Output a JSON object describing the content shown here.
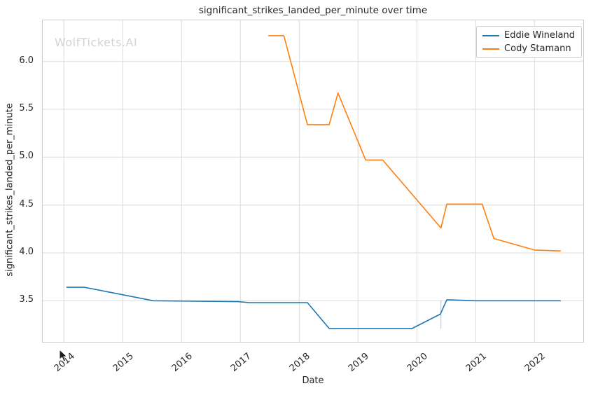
{
  "title": "significant_strikes_landed_per_minute over time",
  "watermark": "WolfTickets.AI",
  "colors": {
    "background": "#ffffff",
    "grid": "#dcdcdc",
    "axis_border": "#cccccc",
    "text": "#262626",
    "watermark": "#d3d3d3",
    "eddie_wineland_line": "#1f77b4",
    "cody_stamann_line": "#ff7f0e",
    "annotation_light_blue": "#aec7e8"
  },
  "legend": {
    "items": [
      "Eddie Wineland",
      "Cody Stamann"
    ]
  },
  "chart_data": {
    "type": "line",
    "title": "significant_strikes_landed_per_minute over time",
    "xlabel": "Date",
    "ylabel": "significant_strikes_landed_per_minute",
    "grid": true,
    "legend_position": "upper right",
    "x_ticks": [
      2014,
      2015,
      2016,
      2017,
      2018,
      2019,
      2020,
      2021,
      2022
    ],
    "y_ticks": [
      3.5,
      4.0,
      4.5,
      5.0,
      5.5,
      6.0
    ],
    "xlim": [
      2013.64,
      2022.83
    ],
    "ylim": [
      3.07,
      6.43
    ],
    "series": [
      {
        "name": "Eddie Wineland",
        "color": "#1f77b4",
        "points": [
          [
            2014.05,
            3.64
          ],
          [
            2014.35,
            3.64
          ],
          [
            2015.52,
            3.5
          ],
          [
            2016.96,
            3.49
          ],
          [
            2017.15,
            3.48
          ],
          [
            2018.14,
            3.48
          ],
          [
            2018.51,
            3.21
          ],
          [
            2019.92,
            3.21
          ],
          [
            2020.4,
            3.36
          ],
          [
            2020.51,
            3.51
          ],
          [
            2021.0,
            3.5
          ],
          [
            2022.44,
            3.5
          ]
        ]
      },
      {
        "name": "Cody Stamann",
        "color": "#ff7f0e",
        "points": [
          [
            2017.48,
            6.27
          ],
          [
            2017.74,
            6.27
          ],
          [
            2018.14,
            5.34
          ],
          [
            2018.51,
            5.34
          ],
          [
            2018.66,
            5.67
          ],
          [
            2019.13,
            4.97
          ],
          [
            2019.42,
            4.97
          ],
          [
            2020.41,
            4.26
          ],
          [
            2020.51,
            4.51
          ],
          [
            2021.11,
            4.51
          ],
          [
            2021.31,
            4.15
          ],
          [
            2022.0,
            4.03
          ],
          [
            2022.44,
            4.02
          ]
        ]
      }
    ],
    "annotations": [
      {
        "type": "vline-segment",
        "x": 2020.41,
        "y_from": 3.21,
        "y_to": 3.5,
        "color": "#aec7e8"
      }
    ]
  }
}
